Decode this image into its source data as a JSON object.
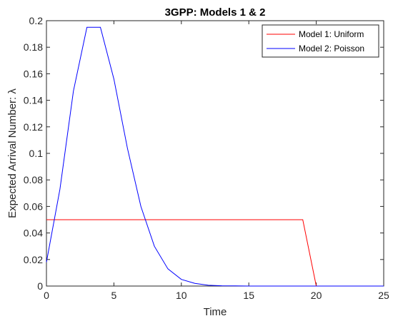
{
  "chart_data": {
    "type": "line",
    "title": "3GPP: Models 1 & 2",
    "xlabel": "Time",
    "ylabel": "Expected Arrival Number: λ",
    "xlim": [
      0,
      25
    ],
    "ylim": [
      0,
      0.2
    ],
    "xticks": [
      0,
      5,
      10,
      15,
      20,
      25
    ],
    "xtick_labels": [
      "0",
      "5",
      "10",
      "15",
      "20",
      "25"
    ],
    "yticks": [
      0,
      0.02,
      0.04,
      0.06,
      0.08,
      0.1,
      0.12,
      0.14,
      0.16,
      0.18,
      0.2
    ],
    "ytick_labels": [
      "0",
      "0.02",
      "0.04",
      "0.06",
      "0.08",
      "0.1",
      "0.12",
      "0.14",
      "0.16",
      "0.18",
      "0.2"
    ],
    "grid": false,
    "legend_position": "top-right",
    "series": [
      {
        "name": "Model 1: Uniform",
        "color": "#ff0000",
        "x": [
          0,
          19,
          20,
          25
        ],
        "y": [
          0.05,
          0.05,
          0,
          0
        ]
      },
      {
        "name": "Model 2: Poisson",
        "color": "#0000ff",
        "x": [
          0,
          1,
          2,
          3,
          4,
          5,
          6,
          7,
          8,
          9,
          10,
          11,
          12,
          13,
          14,
          15,
          16,
          17,
          18,
          19,
          20,
          21,
          22,
          23,
          24,
          25
        ],
        "y": [
          0.018,
          0.073,
          0.147,
          0.195,
          0.195,
          0.156,
          0.104,
          0.06,
          0.03,
          0.013,
          0.005,
          0.002,
          0.0006,
          0.0002,
          0.0001,
          0,
          0,
          0,
          0,
          0,
          0,
          0,
          0,
          0,
          0,
          0
        ]
      }
    ]
  }
}
